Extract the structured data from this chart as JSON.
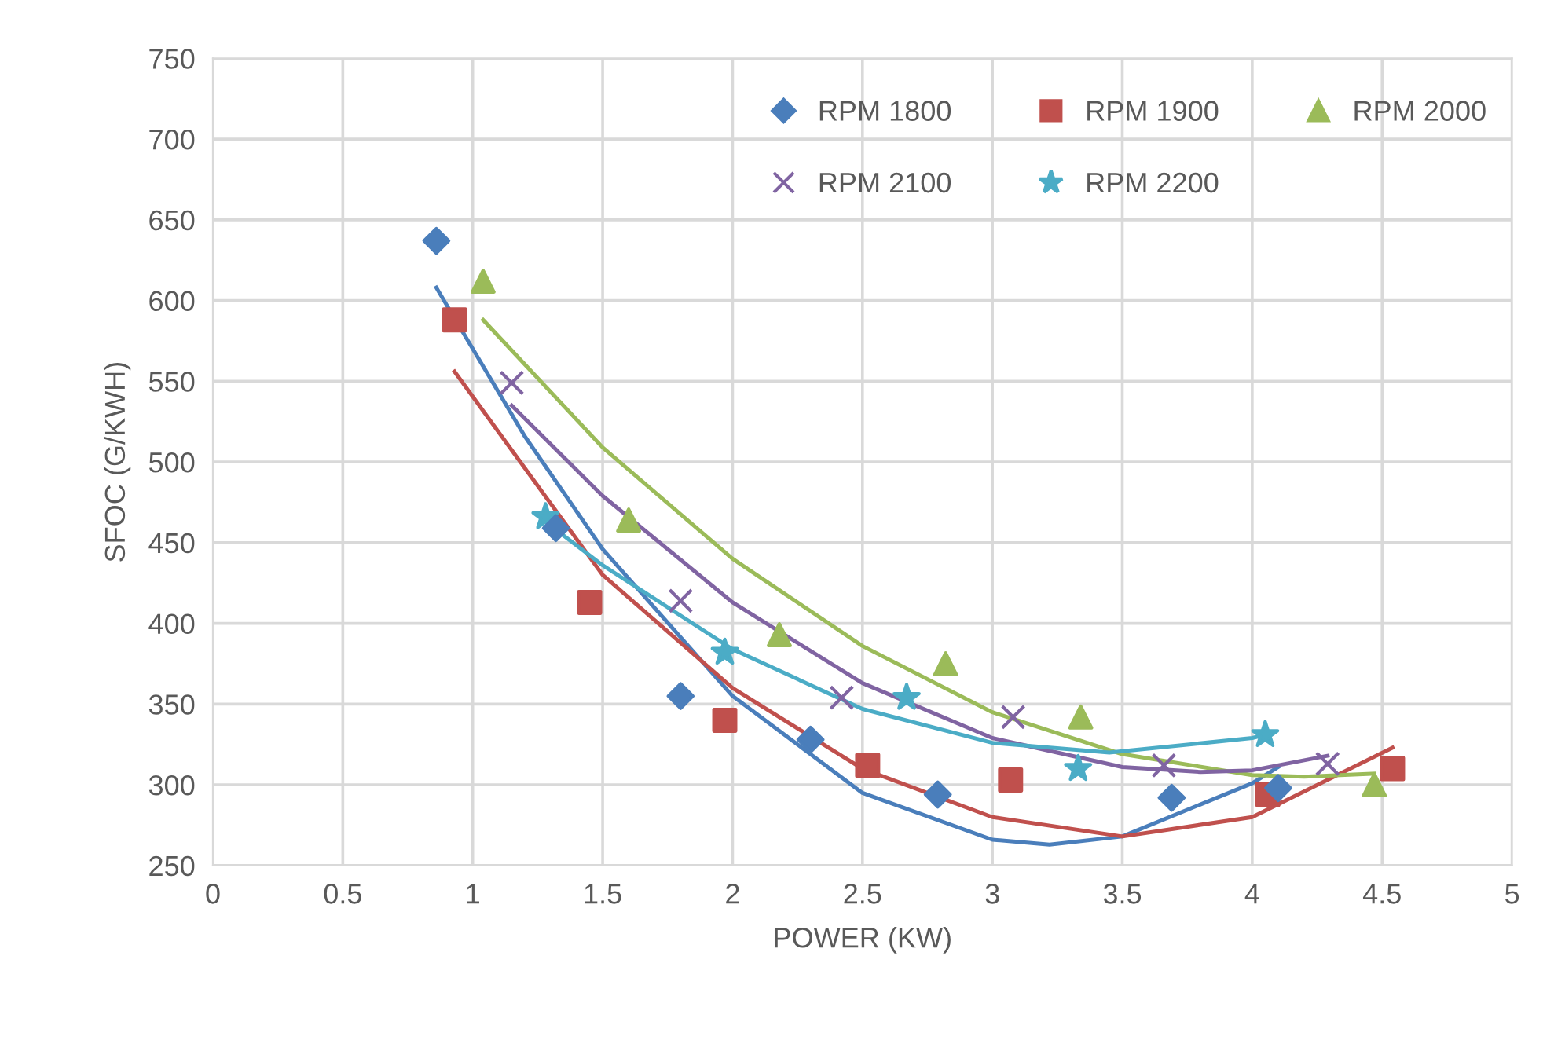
{
  "chart_data": {
    "type": "scatter",
    "xlabel": "POWER (KW)",
    "ylabel": "SFOC (G/KWH)",
    "xlim": [
      0,
      5
    ],
    "xticks": [
      0,
      0.5,
      1,
      1.5,
      2,
      2.5,
      3,
      3.5,
      4,
      4.5,
      5
    ],
    "ylim": [
      250,
      750
    ],
    "yticks": [
      250,
      300,
      350,
      400,
      450,
      500,
      550,
      600,
      650,
      700,
      750
    ],
    "grid": true,
    "legend": "top right",
    "series": [
      {
        "name": "RPM 1800",
        "color": "#4a7ebb",
        "marker": "diamond",
        "x": [
          0.86,
          1.32,
          1.8,
          2.3,
          2.79,
          3.69,
          4.1
        ],
        "values": [
          637,
          459,
          355,
          328,
          294,
          292,
          298
        ]
      },
      {
        "name": "RPM 1900",
        "color": "#c0504d",
        "marker": "square",
        "x": [
          0.93,
          1.45,
          1.97,
          2.52,
          3.07,
          4.06,
          4.54
        ],
        "values": [
          588,
          413,
          340,
          312,
          303,
          294,
          310
        ]
      },
      {
        "name": "RPM 2000",
        "color": "#9bbb59",
        "marker": "triangle",
        "x": [
          1.04,
          1.6,
          2.18,
          2.82,
          3.34,
          4.47
        ],
        "values": [
          612,
          464,
          393,
          375,
          342,
          300
        ]
      },
      {
        "name": "RPM 2100",
        "color": "#8064a2",
        "marker": "cross",
        "x": [
          1.15,
          1.8,
          2.42,
          3.08,
          3.66,
          4.29
        ],
        "values": [
          549,
          414,
          354,
          342,
          312,
          313
        ]
      },
      {
        "name": "RPM 2200",
        "color": "#4bacc6",
        "marker": "star",
        "x": [
          1.28,
          1.97,
          2.67,
          3.33,
          4.05
        ],
        "values": [
          466,
          382,
          354,
          310,
          331
        ]
      },
      {
        "type": "line",
        "color": "#4a7ebb",
        "marker": "none",
        "x": [
          0.86,
          1.2,
          1.5,
          2,
          2.5,
          3,
          3.22,
          3.5,
          4,
          4.1
        ],
        "values": [
          608,
          516,
          446,
          355,
          295,
          266,
          263,
          268,
          301,
          311
        ]
      },
      {
        "type": "line",
        "color": "#c0504d",
        "marker": "none",
        "x": [
          0.93,
          1.5,
          2,
          2.5,
          3,
          3.5,
          4,
          4.54
        ],
        "values": [
          556,
          430,
          360,
          310,
          280,
          268,
          280,
          323
        ]
      },
      {
        "type": "line",
        "color": "#9bbb59",
        "marker": "none",
        "x": [
          1.04,
          1.5,
          2,
          2.5,
          3,
          3.5,
          4,
          4.2,
          4.47
        ],
        "values": [
          588,
          509,
          440,
          386,
          345,
          319,
          306,
          305,
          307
        ]
      },
      {
        "type": "line",
        "color": "#8064a2",
        "marker": "none",
        "x": [
          1.15,
          1.5,
          2,
          2.5,
          3,
          3.5,
          3.8,
          4,
          4.29
        ],
        "values": [
          535,
          479,
          413,
          363,
          329,
          311,
          308,
          309,
          318
        ]
      },
      {
        "type": "line",
        "color": "#4bacc6",
        "marker": "none",
        "x": [
          1.28,
          1.5,
          2,
          2.5,
          3,
          3.45,
          4,
          4.05
        ],
        "values": [
          463,
          436,
          384,
          347,
          326,
          320,
          329,
          331
        ]
      }
    ]
  }
}
